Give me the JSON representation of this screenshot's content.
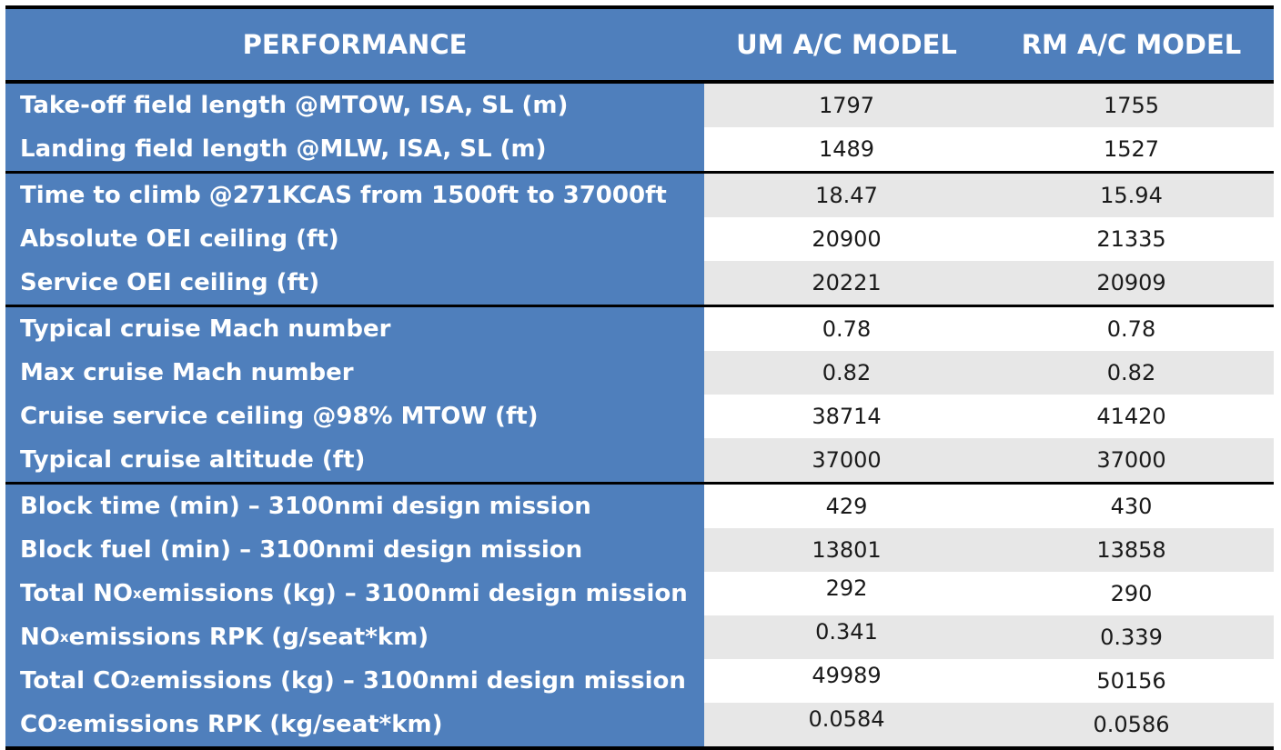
{
  "table": {
    "headers": [
      "PERFORMANCE",
      "UM A/C MODEL",
      "RM A/C MODEL"
    ],
    "groups": [
      {
        "rows": [
          {
            "label": "Take-off field length @MTOW, ISA, SL (m)",
            "um": "1797",
            "rm": "1755"
          },
          {
            "label": "Landing field length @MLW, ISA, SL (m)",
            "um": "1489",
            "rm": "1527"
          }
        ]
      },
      {
        "rows": [
          {
            "label": "Time to climb @271KCAS from 1500ft to 37000ft",
            "um": "18.47",
            "rm": "15.94"
          },
          {
            "label": "Absolute OEI ceiling (ft)",
            "um": "20900",
            "rm": "21335"
          },
          {
            "label": "Service OEI ceiling (ft)",
            "um": "20221",
            "rm": "20909"
          }
        ]
      },
      {
        "rows": [
          {
            "label": "Typical cruise Mach number",
            "um": "0.78",
            "rm": "0.78"
          },
          {
            "label": "Max cruise Mach number",
            "um": "0.82",
            "rm": "0.82"
          },
          {
            "label": "Cruise service ceiling @98% MTOW (ft)",
            "um": "38714",
            "rm": "41420"
          },
          {
            "label": "Typical cruise altitude (ft)",
            "um": "37000",
            "rm": "37000"
          }
        ]
      },
      {
        "rows": [
          {
            "label": "Block time (min) – 3100nmi design mission",
            "um": "429",
            "rm": "430"
          },
          {
            "label": "Block fuel (min) – 3100nmi design mission",
            "um": "13801",
            "rm": "13858"
          },
          {
            "label_pre": "Total NO",
            "label_sub": "x",
            "label_post": " emissions (kg) – 3100nmi design mission",
            "um": "292",
            "rm": "290"
          },
          {
            "label_pre": "NO",
            "label_sub": "x",
            "label_post": " emissions RPK (g/seat*km)",
            "um": "0.341",
            "rm": "0.339"
          },
          {
            "label_pre": "Total CO",
            "label_sub": "2",
            "label_post": " emissions (kg) – 3100nmi design mission",
            "um": "49989",
            "rm": "50156"
          },
          {
            "label_pre": "CO",
            "label_sub": "2",
            "label_post": " emissions RPK (kg/seat*km)",
            "um": "0.0584",
            "rm": "0.0586"
          }
        ]
      }
    ]
  },
  "colors": {
    "header_blue": "#4f7fbc",
    "row_shade": "#e7e7e7",
    "rule": "#000000"
  }
}
